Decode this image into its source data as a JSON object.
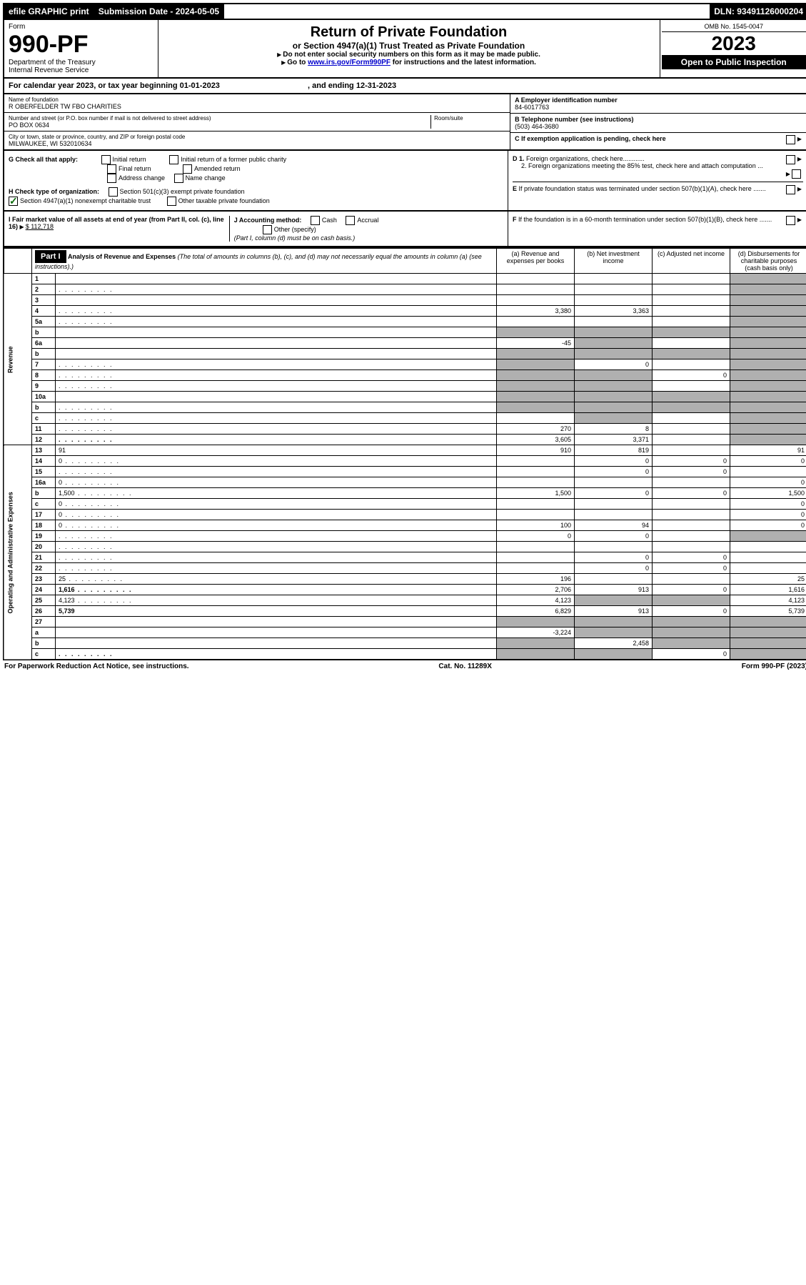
{
  "topbar": {
    "efile": "efile GRAPHIC print",
    "submission": "Submission Date - 2024-05-05",
    "dln": "DLN: 93491126000204"
  },
  "header": {
    "form_label": "Form",
    "form_no": "990-PF",
    "dept": "Department of the Treasury",
    "irs": "Internal Revenue Service",
    "title": "Return of Private Foundation",
    "subtitle": "or Section 4947(a)(1) Trust Treated as Private Foundation",
    "note1": "Do not enter social security numbers on this form as it may be made public.",
    "note2_pre": "Go to ",
    "note2_link": "www.irs.gov/Form990PF",
    "note2_post": " for instructions and the latest information.",
    "omb": "OMB No. 1545-0047",
    "year": "2023",
    "open": "Open to Public Inspection"
  },
  "calendar": {
    "pre": "For calendar year 2023, or tax year beginning ",
    "start": "01-01-2023",
    "mid": " , and ending ",
    "end": "12-31-2023"
  },
  "foundation": {
    "name_label": "Name of foundation",
    "name": "R OBERFELDER TW FBO CHARITIES",
    "addr_label": "Number and street (or P.O. box number if mail is not delivered to street address)",
    "addr": "PO BOX 0634",
    "room_label": "Room/suite",
    "city_label": "City or town, state or province, country, and ZIP or foreign postal code",
    "city": "MILWAUKEE, WI  532010634",
    "ein_label": "A Employer identification number",
    "ein": "84-6017763",
    "phone_label": "B Telephone number (see instructions)",
    "phone": "(503) 464-3680",
    "c_label": "C If exemption application is pending, check here",
    "d1": "D 1. Foreign organizations, check here............",
    "d2": "2. Foreign organizations meeting the 85% test, check here and attach computation ...",
    "e": "E If private foundation status was terminated under section 507(b)(1)(A), check here .......",
    "f": "F If the foundation is in a 60-month termination under section 507(b)(1)(B), check here .......",
    "g_label": "G Check all that apply:",
    "g_opts": [
      "Initial return",
      "Final return",
      "Address change",
      "Initial return of a former public charity",
      "Amended return",
      "Name change"
    ],
    "h_label": "H Check type of organization:",
    "h1": "Section 501(c)(3) exempt private foundation",
    "h2": "Section 4947(a)(1) nonexempt charitable trust",
    "h3": "Other taxable private foundation",
    "i_label": "I Fair market value of all assets at end of year (from Part II, col. (c), line 16)",
    "i_val": "$  112,718",
    "j_label": "J Accounting method:",
    "j_cash": "Cash",
    "j_accrual": "Accrual",
    "j_other": "Other (specify)",
    "j_note": "(Part I, column (d) must be on cash basis.)"
  },
  "part1": {
    "label": "Part I",
    "title": "Analysis of Revenue and Expenses",
    "title_note": "(The total of amounts in columns (b), (c), and (d) may not necessarily equal the amounts in column (a) (see instructions).)",
    "col_a": "(a) Revenue and expenses per books",
    "col_b": "(b) Net investment income",
    "col_c": "(c) Adjusted net income",
    "col_d": "(d) Disbursements for charitable purposes (cash basis only)"
  },
  "side_revenue": "Revenue",
  "side_expenses": "Operating and Administrative Expenses",
  "rows": [
    {
      "n": "1",
      "d": "",
      "a": "",
      "b": "",
      "c": "",
      "ds": true
    },
    {
      "n": "2",
      "d": "",
      "a": "",
      "b": "",
      "c": "",
      "ds": true,
      "dots": true
    },
    {
      "n": "3",
      "d": "",
      "a": "",
      "b": "",
      "c": "",
      "ds": true
    },
    {
      "n": "4",
      "d": "",
      "a": "3,380",
      "b": "3,363",
      "c": "",
      "ds": true,
      "dots": true
    },
    {
      "n": "5a",
      "d": "",
      "a": "",
      "b": "",
      "c": "",
      "ds": true,
      "dots": true
    },
    {
      "n": "b",
      "d": "",
      "a": "",
      "b": "",
      "c": "",
      "ds": true,
      "allshade": true
    },
    {
      "n": "6a",
      "d": "",
      "a": "-45",
      "b": "",
      "c": "",
      "ds": true,
      "bshade": true
    },
    {
      "n": "b",
      "d": "",
      "a": "",
      "b": "",
      "c": "",
      "ds": true,
      "allshade": true
    },
    {
      "n": "7",
      "d": "",
      "a": "",
      "b": "0",
      "c": "",
      "ds": true,
      "ashade": true,
      "dots": true
    },
    {
      "n": "8",
      "d": "",
      "a": "",
      "b": "",
      "c": "0",
      "ds": true,
      "abshade": true,
      "dots": true
    },
    {
      "n": "9",
      "d": "",
      "a": "",
      "b": "",
      "c": "",
      "ds": true,
      "abshade": true,
      "dots": true
    },
    {
      "n": "10a",
      "d": "",
      "a": "",
      "b": "",
      "c": "",
      "ds": true,
      "allshade": true
    },
    {
      "n": "b",
      "d": "",
      "a": "",
      "b": "",
      "c": "",
      "ds": true,
      "allshade": true,
      "dots": true
    },
    {
      "n": "c",
      "d": "",
      "a": "",
      "b": "",
      "c": "",
      "ds": true,
      "bshade": true,
      "dots": true
    },
    {
      "n": "11",
      "d": "",
      "a": "270",
      "b": "8",
      "c": "",
      "ds": true,
      "dots": true
    },
    {
      "n": "12",
      "d": "",
      "a": "3,605",
      "b": "3,371",
      "c": "",
      "ds": true,
      "bold": true,
      "dots": true
    },
    {
      "n": "13",
      "d": "91",
      "a": "910",
      "b": "819",
      "c": ""
    },
    {
      "n": "14",
      "d": "0",
      "a": "",
      "b": "0",
      "c": "0",
      "dots": true
    },
    {
      "n": "15",
      "d": "",
      "a": "",
      "b": "0",
      "c": "0",
      "dots": true
    },
    {
      "n": "16a",
      "d": "0",
      "a": "",
      "b": "",
      "c": "",
      "dots": true
    },
    {
      "n": "b",
      "d": "1,500",
      "a": "1,500",
      "b": "0",
      "c": "0",
      "dots": true
    },
    {
      "n": "c",
      "d": "0",
      "a": "",
      "b": "",
      "c": "",
      "dots": true
    },
    {
      "n": "17",
      "d": "0",
      "a": "",
      "b": "",
      "c": "",
      "dots": true
    },
    {
      "n": "18",
      "d": "0",
      "a": "100",
      "b": "94",
      "c": "",
      "dots": true
    },
    {
      "n": "19",
      "d": "",
      "a": "0",
      "b": "0",
      "c": "",
      "ds": true,
      "dots": true
    },
    {
      "n": "20",
      "d": "",
      "a": "",
      "b": "",
      "c": "",
      "dots": true
    },
    {
      "n": "21",
      "d": "",
      "a": "",
      "b": "0",
      "c": "0",
      "dots": true
    },
    {
      "n": "22",
      "d": "",
      "a": "",
      "b": "0",
      "c": "0",
      "dots": true
    },
    {
      "n": "23",
      "d": "25",
      "a": "196",
      "b": "",
      "c": "",
      "dots": true
    },
    {
      "n": "24",
      "d": "1,616",
      "a": "2,706",
      "b": "913",
      "c": "0",
      "bold": true,
      "dots": true
    },
    {
      "n": "25",
      "d": "4,123",
      "a": "4,123",
      "b": "",
      "c": "",
      "bshade": true,
      "cshade": true,
      "dots": true
    },
    {
      "n": "26",
      "d": "5,739",
      "a": "6,829",
      "b": "913",
      "c": "0",
      "bold": true
    },
    {
      "n": "27",
      "d": "",
      "a": "",
      "b": "",
      "c": "",
      "allshade": true
    },
    {
      "n": "a",
      "d": "",
      "a": "-3,224",
      "b": "",
      "c": "",
      "bold": true,
      "bshade": true,
      "cshade": true,
      "ds": true
    },
    {
      "n": "b",
      "d": "",
      "a": "",
      "b": "2,458",
      "c": "",
      "bold": true,
      "ashade": true,
      "cshade": true,
      "ds": true
    },
    {
      "n": "c",
      "d": "",
      "a": "",
      "b": "",
      "c": "0",
      "bold": true,
      "ashade": true,
      "bshade": true,
      "ds": true,
      "dots": true
    }
  ],
  "footer": {
    "left": "For Paperwork Reduction Act Notice, see instructions.",
    "mid": "Cat. No. 11289X",
    "right": "Form 990-PF (2023)"
  }
}
